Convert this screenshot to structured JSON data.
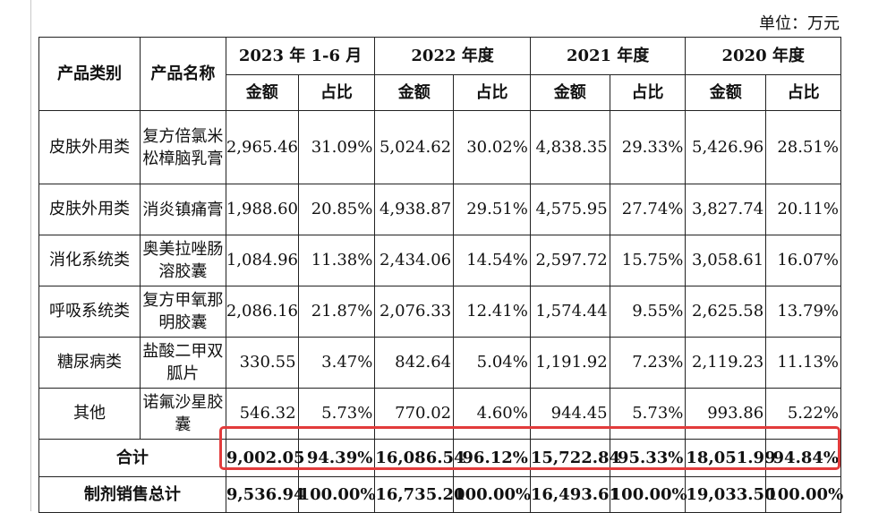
{
  "unit_label": "单位：万元",
  "header": {
    "category": "产品类别",
    "product": "产品名称",
    "periods": [
      "2023 年 1-6 月",
      "2022 年度",
      "2021 年度",
      "2020 年度"
    ],
    "amount": "金额",
    "ratio": "占比"
  },
  "rows": [
    {
      "category": "皮肤外用类",
      "name": "复方倍氯米松樟脑乳膏",
      "values": [
        "2,965.46",
        "31.09%",
        "5,024.62",
        "30.02%",
        "4,838.35",
        "29.33%",
        "5,426.96",
        "28.51%"
      ]
    },
    {
      "category": "皮肤外用类",
      "name": "消炎镇痛膏",
      "values": [
        "1,988.60",
        "20.85%",
        "4,938.87",
        "29.51%",
        "4,575.95",
        "27.74%",
        "3,827.74",
        "20.11%"
      ]
    },
    {
      "category": "消化系统类",
      "name": "奥美拉唑肠溶胶囊",
      "values": [
        "1,084.96",
        "11.38%",
        "2,434.06",
        "14.54%",
        "2,597.72",
        "15.75%",
        "3,058.61",
        "16.07%"
      ]
    },
    {
      "category": "呼吸系统类",
      "name": "复方甲氧那明胶囊",
      "values": [
        "2,086.16",
        "21.87%",
        "2,076.33",
        "12.41%",
        "1,574.44",
        "9.55%",
        "2,625.58",
        "13.79%"
      ]
    },
    {
      "category": "糖尿病类",
      "name": "盐酸二甲双胍片",
      "values": [
        "330.55",
        "3.47%",
        "842.64",
        "5.04%",
        "1,191.92",
        "7.23%",
        "2,119.23",
        "11.13%"
      ]
    },
    {
      "category": "其他",
      "name": "诺氟沙星胶囊",
      "values": [
        "546.32",
        "5.73%",
        "770.02",
        "4.60%",
        "944.45",
        "5.73%",
        "993.86",
        "5.22%"
      ]
    }
  ],
  "total": {
    "label": "合计",
    "values": [
      "9,002.05",
      "94.39%",
      "16,086.54",
      "96.12%",
      "15,722.84",
      "95.33%",
      "18,051.99",
      "94.84%"
    ]
  },
  "grand_total": {
    "label": "制剂销售总计",
    "values": [
      "9,536.94",
      "100.00%",
      "16,735.20",
      "100.00%",
      "16,493.61",
      "100.00%",
      "19,033.50",
      "100.00%"
    ]
  },
  "highlight_color": "#e23b3b"
}
